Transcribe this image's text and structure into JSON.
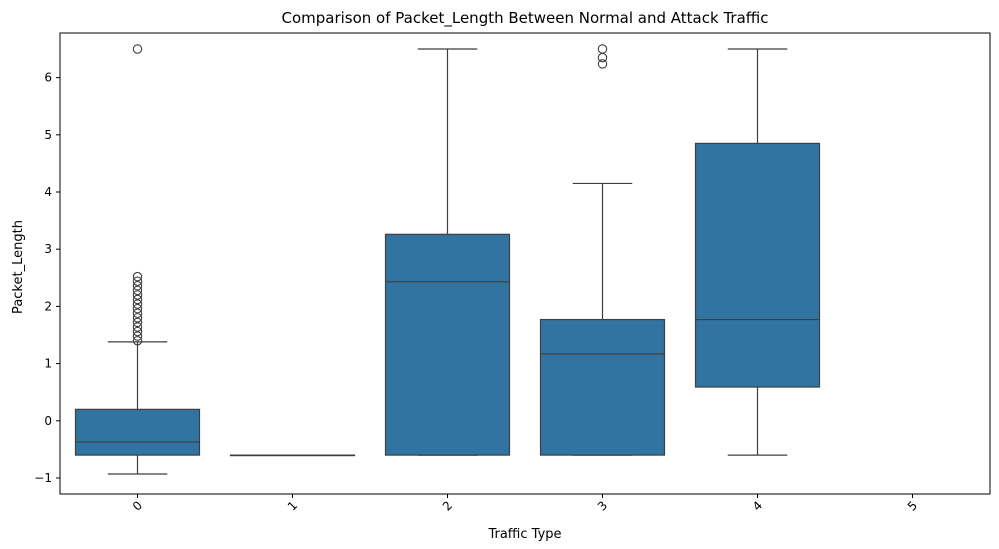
{
  "chart_data": {
    "type": "box",
    "title": "Comparison of Packet_Length Between Normal and Attack Traffic",
    "xlabel": "Traffic Type",
    "ylabel": "Packet_Length",
    "categories": [
      "0",
      "1",
      "2",
      "3",
      "4",
      "5"
    ],
    "ylim": [
      -1.28,
      6.78
    ],
    "yticks": [
      -1,
      0,
      1,
      2,
      3,
      4,
      5,
      6
    ],
    "grid": false,
    "color": "#3274a1",
    "boxes": [
      {
        "category": "0",
        "whisker_low": -0.93,
        "q1": -0.6,
        "median": -0.37,
        "q3": 0.2,
        "whisker_high": 1.38,
        "outliers": [
          1.4,
          1.48,
          1.56,
          1.64,
          1.72,
          1.8,
          1.88,
          1.96,
          2.04,
          2.12,
          2.2,
          2.28,
          2.36,
          2.44,
          2.52,
          6.5
        ]
      },
      {
        "category": "1",
        "whisker_low": -0.6,
        "q1": -0.6,
        "median": -0.6,
        "q3": -0.6,
        "whisker_high": -0.6,
        "outliers": []
      },
      {
        "category": "2",
        "whisker_low": -0.6,
        "q1": -0.6,
        "median": 2.43,
        "q3": 3.26,
        "whisker_high": 6.5,
        "outliers": []
      },
      {
        "category": "3",
        "whisker_low": -0.6,
        "q1": -0.6,
        "median": 1.17,
        "q3": 1.77,
        "whisker_high": 4.15,
        "outliers": [
          6.24,
          6.35,
          6.5
        ]
      },
      {
        "category": "4",
        "whisker_low": -0.6,
        "q1": 0.59,
        "median": 1.77,
        "q3": 4.85,
        "whisker_high": 6.5,
        "outliers": []
      },
      {
        "category": "5",
        "empty": true
      }
    ]
  }
}
